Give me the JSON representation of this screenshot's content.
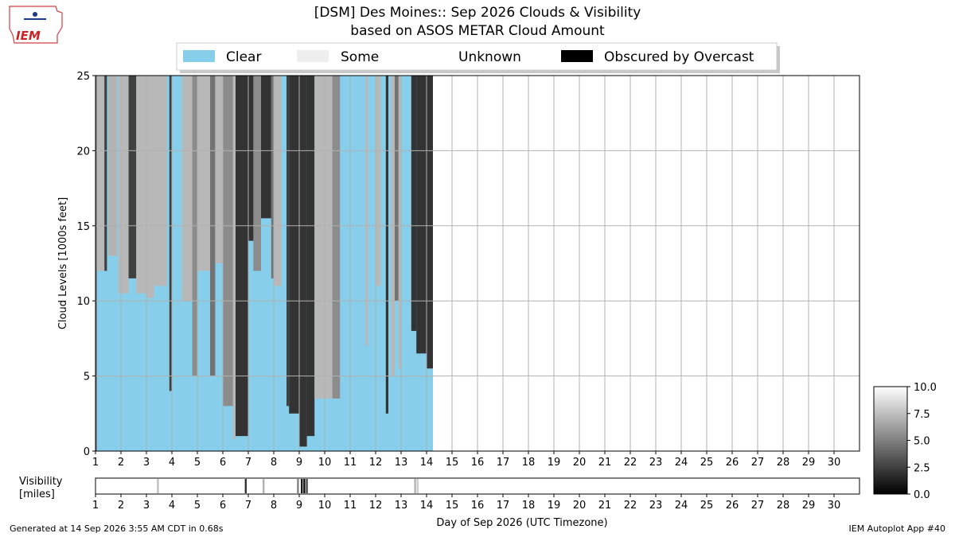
{
  "header": {
    "logo_text": "IEM",
    "title_line1": "[DSM] Des Moines:: Sep 2026 Clouds & Visibility",
    "title_line2": "based on ASOS METAR Cloud Amount"
  },
  "footer": {
    "generated": "Generated at 14 Sep 2026 3:55 AM CDT in 0.68s",
    "app": "IEM Autoplot App #40"
  },
  "colors": {
    "clear": "#87CEEB",
    "some": "#EEEEEE",
    "unknown": "#FFFFFF",
    "overcast": "#000000",
    "grid": "#b0b0b0"
  },
  "chart_data": [
    {
      "type": "area",
      "title": "[DSM] Des Moines:: Sep 2026 Clouds & Visibility",
      "subtitle": "based on ASOS METAR Cloud Amount",
      "ylabel": "Cloud Levels [1000s feet]",
      "xlabel": "",
      "xlim": [
        1,
        31
      ],
      "ylim": [
        0,
        25
      ],
      "yticks": [
        0,
        5,
        10,
        15,
        20,
        25
      ],
      "xticks": [
        1,
        2,
        3,
        4,
        5,
        6,
        7,
        8,
        9,
        10,
        11,
        12,
        13,
        14,
        15,
        16,
        17,
        18,
        19,
        20,
        21,
        22,
        23,
        24,
        25,
        26,
        27,
        28,
        29,
        30
      ],
      "grid": true,
      "legend_position": "top",
      "legend": [
        {
          "label": "Clear",
          "color": "#87CEEB"
        },
        {
          "label": "Some",
          "color": "#EEEEEE"
        },
        {
          "label": "Unknown",
          "color": "#FFFFFF"
        },
        {
          "label": "Obscured by Overcast",
          "color": "#000000"
        }
      ],
      "data_end_day": 14.25,
      "cloud_blocks": [
        {
          "x0": 1.0,
          "x1": 1.05,
          "bottom": 0,
          "top": 25,
          "shade": 0.4
        },
        {
          "x0": 1.05,
          "x1": 1.35,
          "bottom": 12,
          "top": 25,
          "shade": 0.72
        },
        {
          "x0": 1.35,
          "x1": 1.45,
          "bottom": 12,
          "top": 25,
          "shade": 0.25
        },
        {
          "x0": 1.5,
          "x1": 1.85,
          "bottom": 13,
          "top": 25,
          "shade": 0.7
        },
        {
          "x0": 1.9,
          "x1": 2.3,
          "bottom": 10.5,
          "top": 25,
          "shade": 0.72
        },
        {
          "x0": 2.3,
          "x1": 2.6,
          "bottom": 11.5,
          "top": 25,
          "shade": 0.25
        },
        {
          "x0": 2.6,
          "x1": 3.0,
          "bottom": 10.5,
          "top": 25,
          "shade": 0.72
        },
        {
          "x0": 3.0,
          "x1": 3.3,
          "bottom": 10.2,
          "top": 25,
          "shade": 0.72
        },
        {
          "x0": 3.3,
          "x1": 3.8,
          "bottom": 11.0,
          "top": 25,
          "shade": 0.72
        },
        {
          "x0": 3.9,
          "x1": 4.0,
          "bottom": 4.0,
          "top": 25,
          "shade": 0.25
        },
        {
          "x0": 4.4,
          "x1": 4.8,
          "bottom": 10.0,
          "top": 25,
          "shade": 0.72
        },
        {
          "x0": 4.8,
          "x1": 5.0,
          "bottom": 5.0,
          "top": 25,
          "shade": 0.55
        },
        {
          "x0": 5.0,
          "x1": 5.5,
          "bottom": 12.0,
          "top": 25,
          "shade": 0.72
        },
        {
          "x0": 5.5,
          "x1": 5.7,
          "bottom": 5.0,
          "top": 25,
          "shade": 0.45
        },
        {
          "x0": 5.7,
          "x1": 6.0,
          "bottom": 12.5,
          "top": 25,
          "shade": 0.72
        },
        {
          "x0": 6.0,
          "x1": 6.4,
          "bottom": 3.0,
          "top": 25,
          "shade": 0.55
        },
        {
          "x0": 6.4,
          "x1": 6.5,
          "bottom": 0.8,
          "top": 25,
          "shade": 0.72
        },
        {
          "x0": 6.5,
          "x1": 7.0,
          "bottom": 1.0,
          "top": 25,
          "shade": 0.2
        },
        {
          "x0": 7.0,
          "x1": 7.2,
          "bottom": 14.0,
          "top": 25,
          "shade": 0.2
        },
        {
          "x0": 7.2,
          "x1": 7.5,
          "bottom": 12.0,
          "top": 25,
          "shade": 0.55
        },
        {
          "x0": 7.5,
          "x1": 7.9,
          "bottom": 15.5,
          "top": 25,
          "shade": 0.2
        },
        {
          "x0": 7.9,
          "x1": 8.0,
          "bottom": 11.5,
          "top": 25,
          "shade": 0.45
        },
        {
          "x0": 8.0,
          "x1": 8.3,
          "bottom": 11.0,
          "top": 25,
          "shade": 0.72
        },
        {
          "x0": 8.5,
          "x1": 8.6,
          "bottom": 3.0,
          "top": 25,
          "shade": 0.25
        },
        {
          "x0": 8.6,
          "x1": 9.0,
          "bottom": 2.5,
          "top": 25,
          "shade": 0.2
        },
        {
          "x0": 9.0,
          "x1": 9.3,
          "bottom": 0.3,
          "top": 25,
          "shade": 0.2
        },
        {
          "x0": 9.3,
          "x1": 9.6,
          "bottom": 1.0,
          "top": 25,
          "shade": 0.2
        },
        {
          "x0": 9.6,
          "x1": 10.0,
          "bottom": 3.5,
          "top": 25,
          "shade": 0.72
        },
        {
          "x0": 10.0,
          "x1": 10.3,
          "bottom": 3.5,
          "top": 25,
          "shade": 0.72
        },
        {
          "x0": 10.3,
          "x1": 10.6,
          "bottom": 3.5,
          "top": 25,
          "shade": 0.55
        },
        {
          "x0": 11.6,
          "x1": 11.7,
          "bottom": 7.0,
          "top": 25,
          "shade": 0.72
        },
        {
          "x0": 12.0,
          "x1": 12.2,
          "bottom": 11.0,
          "top": 25,
          "shade": 0.72
        },
        {
          "x0": 12.4,
          "x1": 12.5,
          "bottom": 2.5,
          "top": 25,
          "shade": 0.2
        },
        {
          "x0": 12.6,
          "x1": 12.75,
          "bottom": 5.0,
          "top": 25,
          "shade": 0.72
        },
        {
          "x0": 12.75,
          "x1": 12.9,
          "bottom": 10.0,
          "top": 25,
          "shade": 0.45
        },
        {
          "x0": 12.9,
          "x1": 13.0,
          "bottom": 5.5,
          "top": 25,
          "shade": 0.72
        },
        {
          "x0": 13.4,
          "x1": 13.6,
          "bottom": 8.0,
          "top": 25,
          "shade": 0.2
        },
        {
          "x0": 13.6,
          "x1": 14.0,
          "bottom": 6.5,
          "top": 25,
          "shade": 0.2
        },
        {
          "x0": 14.0,
          "x1": 14.25,
          "bottom": 5.5,
          "top": 25,
          "shade": 0.2
        }
      ]
    },
    {
      "type": "heatmap",
      "ylabel": "Visibility\n[miles]",
      "xlabel": "Day of Sep 2026 (UTC Timezone)",
      "xlim": [
        1,
        31
      ],
      "xticks": [
        1,
        2,
        3,
        4,
        5,
        6,
        7,
        8,
        9,
        10,
        11,
        12,
        13,
        14,
        15,
        16,
        17,
        18,
        19,
        20,
        21,
        22,
        23,
        24,
        25,
        26,
        27,
        28,
        29,
        30
      ],
      "colorbar_label": "",
      "colorbar_range": [
        0.0,
        10.0
      ],
      "colorbar_ticks": [
        "0.0",
        "2.5",
        "5.0",
        "7.5",
        "10.0"
      ],
      "colormap": "grayscale",
      "low_visibility_marks": [
        {
          "x": 3.45,
          "value": 7.5
        },
        {
          "x": 6.9,
          "value": 2.0
        },
        {
          "x": 7.6,
          "value": 7.0
        },
        {
          "x": 8.95,
          "value": 5.0
        },
        {
          "x": 9.1,
          "value": 1.0
        },
        {
          "x": 9.2,
          "value": 0.5
        },
        {
          "x": 9.3,
          "value": 3.0
        },
        {
          "x": 13.55,
          "value": 7.0
        },
        {
          "x": 13.65,
          "value": 8.0
        }
      ]
    }
  ]
}
